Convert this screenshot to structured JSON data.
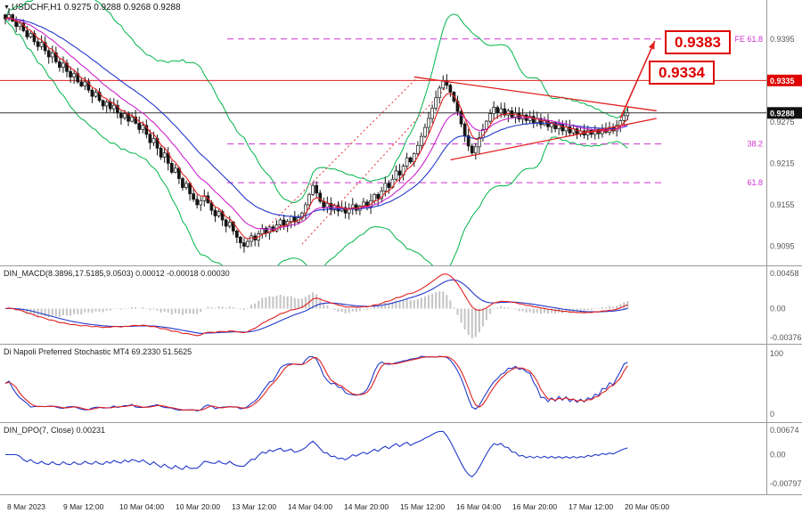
{
  "header": {
    "symbol_marker": "▼",
    "quote_line": "USDCHF,H1 0.9275 0.9288 0.9268 0.9288"
  },
  "main": {
    "callouts": [
      {
        "text": "0.9383"
      },
      {
        "text": "0.9334"
      }
    ],
    "axis_labels": [
      {
        "text": "0.9395",
        "price": 0.9395
      },
      {
        "text": "0.9275",
        "price": 0.9275
      },
      {
        "text": "0.9215",
        "price": 0.9215
      },
      {
        "text": "0.9155",
        "price": 0.9155
      },
      {
        "text": "0.9095",
        "price": 0.9095
      }
    ],
    "boxed_labels": [
      {
        "text": "0.9335",
        "price": 0.9335,
        "bg": "#e00000"
      },
      {
        "text": "0.9288",
        "price": 0.9288,
        "bg": "#101010"
      }
    ],
    "hlines": [
      {
        "price": 0.9335,
        "color": "#e02020"
      },
      {
        "price": 0.9288,
        "color": "#303030"
      }
    ],
    "fib_levels": [
      {
        "label": "FE 61.8",
        "price": 0.9395
      },
      {
        "label": "38.2",
        "price": 0.9243
      },
      {
        "label": "61.8",
        "price": 0.9187
      }
    ],
    "trend_dotted": [
      {
        "b1": 72,
        "p1": 0.912,
        "b2": 114,
        "p2": 0.934
      },
      {
        "b1": 82,
        "p1": 0.9098,
        "b2": 122,
        "p2": 0.9326
      }
    ],
    "triangle": [
      {
        "b1": 113,
        "p1": 0.934,
        "b2": 180,
        "p2": 0.9291
      },
      {
        "b1": 123,
        "p1": 0.922,
        "b2": 180,
        "p2": 0.928
      }
    ],
    "arrow": {
      "b1": 170,
      "p1": 0.928,
      "b2": 179.5,
      "p2": 0.9392
    }
  },
  "panels": {
    "macd": {
      "label": "DIN_MACD(8.3896,17.5185,9.0503) 0.00012 -0.00018 0.00030",
      "axis": [
        {
          "text": "0.00458",
          "v": 0.00458
        },
        {
          "text": "0.00",
          "v": 0
        },
        {
          "text": "-0.00376",
          "v": -0.00376
        }
      ],
      "ymax": 0.00458,
      "ymin": -0.00376
    },
    "stoch": {
      "label": "Di Napoli Preferred Stochastic MT4 69.2330 51.5625",
      "axis": [
        {
          "text": "100",
          "v": 100
        },
        {
          "text": "0",
          "v": 0
        }
      ],
      "ymax": 100,
      "ymin": 0
    },
    "dpo": {
      "label": "DIN_DPO(7, Close) 0.00231",
      "axis": [
        {
          "text": "0.00674",
          "v": 0.00674
        },
        {
          "text": "0.00",
          "v": 0
        },
        {
          "text": "-0.00797",
          "v": -0.00797
        }
      ],
      "ymax": 0.00674,
      "ymin": -0.00797
    }
  },
  "time_axis": {
    "labels": [
      "8 Mar 2023",
      "9 Mar 12:00",
      "10 Mar 04:00",
      "10 Mar 20:00",
      "13 Mar 12:00",
      "14 Mar 04:00",
      "14 Mar 20:00",
      "15 Mar 12:00",
      "16 Mar 04:00",
      "16 Mar 20:00",
      "17 Mar 12:00",
      "20 Mar 05:00"
    ]
  },
  "colors": {
    "bull": "#ffffff",
    "bear": "#151515",
    "outline": "#151515",
    "ma_fast": "#e02020",
    "ma_mid": "#cc22cc",
    "ma_slow": "#2238cc",
    "band": "#00b44b",
    "magenta": "#d030d0",
    "macd_line": "#e02020",
    "macd_signal": "#2238cc",
    "macd_hist": "#c4c4c4",
    "stoch_k": "#2238cc",
    "stoch_d": "#e02020",
    "dpo": "#2238cc",
    "axis_text": "#555555",
    "grid_border": "#9a9a9a"
  },
  "chart_data": {
    "type": "candlestick",
    "symbol": "USDCHF",
    "timeframe": "H1",
    "title": "USDCHF,H1",
    "price_range": {
      "min": 0.9075,
      "max": 0.9445
    },
    "x_labels": [
      "8 Mar 2023",
      "9 Mar 12:00",
      "10 Mar 04:00",
      "10 Mar 20:00",
      "13 Mar 12:00",
      "14 Mar 04:00",
      "14 Mar 20:00",
      "15 Mar 12:00",
      "16 Mar 04:00",
      "16 Mar 20:00",
      "17 Mar 12:00",
      "20 Mar 05:00"
    ],
    "closes": [
      0.9424,
      0.943,
      0.9421,
      0.9413,
      0.9418,
      0.9407,
      0.9398,
      0.9403,
      0.9391,
      0.9384,
      0.939,
      0.9378,
      0.9369,
      0.9375,
      0.9362,
      0.9354,
      0.936,
      0.9348,
      0.934,
      0.9345,
      0.9333,
      0.9327,
      0.9333,
      0.9321,
      0.9312,
      0.9318,
      0.9306,
      0.9298,
      0.9304,
      0.9294,
      0.9299,
      0.9288,
      0.9281,
      0.9287,
      0.9276,
      0.9282,
      0.9273,
      0.9264,
      0.927,
      0.9257,
      0.9245,
      0.9251,
      0.9237,
      0.9224,
      0.923,
      0.9215,
      0.9202,
      0.9208,
      0.9193,
      0.918,
      0.9186,
      0.9171,
      0.9163,
      0.9155,
      0.9161,
      0.9168,
      0.9158,
      0.9147,
      0.9139,
      0.9145,
      0.9133,
      0.9124,
      0.913,
      0.9117,
      0.9108,
      0.91,
      0.9095,
      0.9102,
      0.911,
      0.9104,
      0.9113,
      0.9121,
      0.9114,
      0.9123,
      0.9117,
      0.9126,
      0.9133,
      0.9125,
      0.9131,
      0.9138,
      0.913,
      0.9136,
      0.9143,
      0.9155,
      0.917,
      0.9183,
      0.9172,
      0.916,
      0.9151,
      0.9157,
      0.9148,
      0.9154,
      0.9146,
      0.9151,
      0.9143,
      0.9149,
      0.9155,
      0.9147,
      0.9153,
      0.9159,
      0.9152,
      0.9161,
      0.917,
      0.9164,
      0.9175,
      0.9186,
      0.918,
      0.9192,
      0.9204,
      0.9198,
      0.9211,
      0.9223,
      0.9217,
      0.9229,
      0.9241,
      0.9254,
      0.9267,
      0.928,
      0.9295,
      0.931,
      0.9324,
      0.9334,
      0.9328,
      0.9318,
      0.9305,
      0.929,
      0.9272,
      0.9255,
      0.924,
      0.923,
      0.9239,
      0.9252,
      0.9264,
      0.9276,
      0.9287,
      0.9296,
      0.9288,
      0.9294,
      0.9285,
      0.9291,
      0.9282,
      0.9288,
      0.9279,
      0.9285,
      0.9277,
      0.9283,
      0.9274,
      0.928,
      0.9271,
      0.9277,
      0.9268,
      0.9274,
      0.9265,
      0.9271,
      0.9262,
      0.9268,
      0.9259,
      0.9265,
      0.9257,
      0.9262,
      0.9256,
      0.9263,
      0.9257,
      0.9264,
      0.9258,
      0.9266,
      0.926,
      0.9267,
      0.9262,
      0.927,
      0.9277,
      0.9284,
      0.9288
    ],
    "indicators": {
      "macd": {
        "name": "DIN_MACD",
        "params": [
          8.3896,
          17.5185,
          9.0503
        ],
        "current": [
          0.00012,
          -0.00018,
          0.0003
        ]
      },
      "stochastic": {
        "name": "Di Napoli Preferred Stochastic MT4",
        "current": [
          69.233,
          51.5625
        ]
      },
      "dpo": {
        "name": "DIN_DPO",
        "params": "7, Close",
        "current": 0.00231
      }
    },
    "levels": {
      "resistance": 0.9335,
      "current_price": 0.9288,
      "targets": [
        0.9334,
        0.9383
      ],
      "fib_expansion_61_8": 0.9395,
      "fib_retrace_38_2": 0.9243,
      "fib_retrace_61_8": 0.9187
    }
  }
}
